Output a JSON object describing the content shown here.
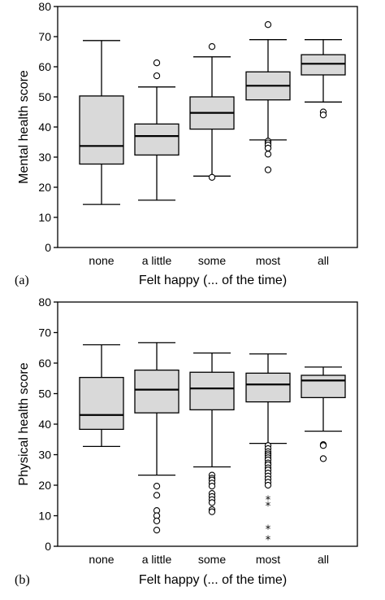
{
  "chart_data": [
    {
      "type": "box",
      "panel_label": "(a)",
      "xlabel": "Felt happy  (... of the time)",
      "ylabel": "Mental health score",
      "ylim": [
        0,
        80
      ],
      "yticks": [
        0,
        10,
        20,
        30,
        40,
        50,
        60,
        70,
        80
      ],
      "categories": [
        "none",
        "a little",
        "some",
        "most",
        "all"
      ],
      "boxes": [
        {
          "min": 14.3,
          "q1": 27.7,
          "median": 33.7,
          "q3": 50.3,
          "max": 68.7,
          "outliers": [],
          "extremes": []
        },
        {
          "min": 15.7,
          "q1": 30.7,
          "median": 37.0,
          "q3": 41.0,
          "max": 53.3,
          "outliers": [
            57.0,
            61.3
          ],
          "extremes": []
        },
        {
          "min": 23.7,
          "q1": 39.3,
          "median": 44.7,
          "q3": 50.0,
          "max": 63.3,
          "outliers": [
            23.3,
            66.7
          ],
          "extremes": []
        },
        {
          "min": 35.7,
          "q1": 49.0,
          "median": 53.7,
          "q3": 58.3,
          "max": 69.0,
          "outliers": [
            74.0,
            35.3,
            34.7,
            34.0,
            33.0,
            31.0,
            25.8
          ],
          "extremes": []
        },
        {
          "min": 48.3,
          "q1": 57.3,
          "median": 61.0,
          "q3": 64.0,
          "max": 69.0,
          "outliers": [
            45.0,
            44.0
          ],
          "extremes": []
        }
      ]
    },
    {
      "type": "box",
      "panel_label": "(b)",
      "xlabel": "Felt happy  (... of the time)",
      "ylabel": "Physical health score",
      "ylim": [
        0,
        80
      ],
      "yticks": [
        0,
        10,
        20,
        30,
        40,
        50,
        60,
        70,
        80
      ],
      "categories": [
        "none",
        "a little",
        "some",
        "most",
        "all"
      ],
      "boxes": [
        {
          "min": 32.7,
          "q1": 38.3,
          "median": 43.0,
          "q3": 55.3,
          "max": 66.0,
          "outliers": [],
          "extremes": []
        },
        {
          "min": 23.3,
          "q1": 43.7,
          "median": 51.3,
          "q3": 57.7,
          "max": 66.7,
          "outliers": [
            19.7,
            16.7,
            11.7,
            10.0,
            8.3,
            5.3
          ],
          "extremes": []
        },
        {
          "min": 26.0,
          "q1": 44.7,
          "median": 51.7,
          "q3": 57.0,
          "max": 63.3,
          "outliers": [
            23.3,
            22.3,
            21.7,
            20.7,
            19.7,
            17.3,
            16.3,
            15.3,
            14.3,
            12.0,
            11.3
          ],
          "extremes": []
        },
        {
          "min": 33.7,
          "q1": 47.3,
          "median": 53.0,
          "q3": 56.7,
          "max": 63.0,
          "outliers": [
            33.0,
            32.0,
            31.0,
            30.3,
            29.7,
            29.0,
            28.3,
            27.3,
            26.7,
            25.7,
            25.0,
            24.0,
            23.0,
            22.0,
            21.0,
            20.0
          ],
          "extremes": [
            15.3,
            13.3,
            5.7,
            2.3
          ]
        },
        {
          "min": 37.7,
          "q1": 48.7,
          "median": 54.3,
          "q3": 56.0,
          "max": 58.7,
          "outliers": [
            33.3,
            33.0,
            28.7
          ],
          "extremes": []
        }
      ]
    }
  ]
}
